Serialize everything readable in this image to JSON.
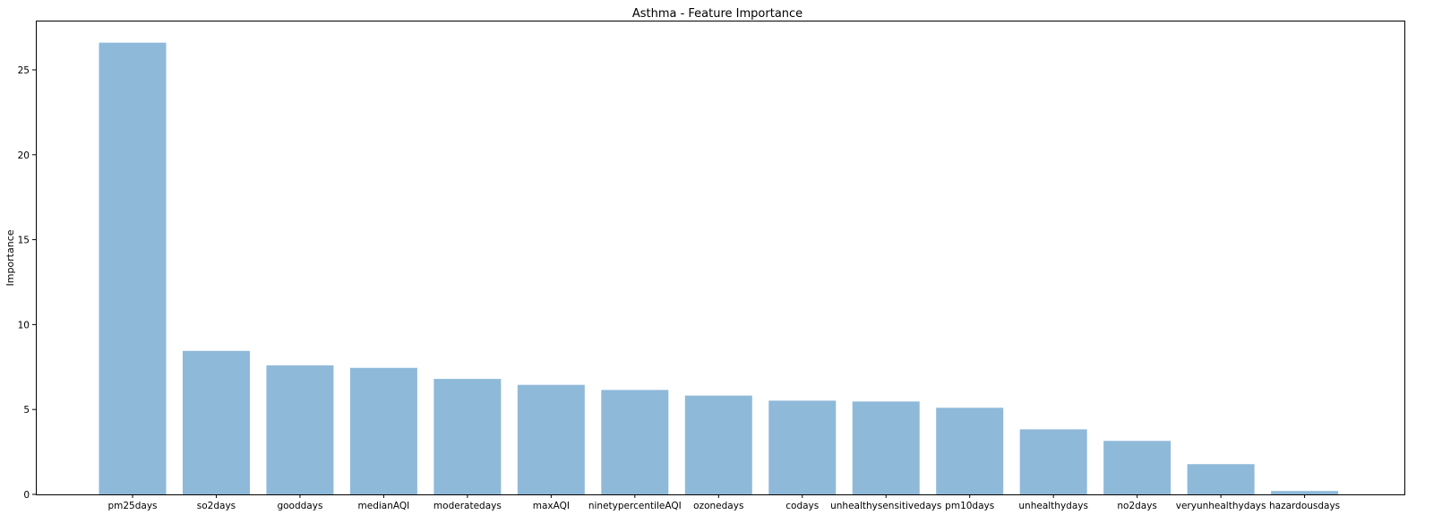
{
  "chart_data": {
    "type": "bar",
    "title": "Asthma - Feature Importance",
    "xlabel": "",
    "ylabel": "Importance",
    "categories": [
      "pm25days",
      "so2days",
      "gooddays",
      "medianAQI",
      "moderatedays",
      "maxAQI",
      "ninetypercentileAQI",
      "ozonedays",
      "codays",
      "unhealthysensitivedays",
      "pm10days",
      "unhealthydays",
      "no2days",
      "veryunhealthydays",
      "hazardousdays"
    ],
    "values": [
      26.6,
      8.45,
      7.6,
      7.45,
      6.8,
      6.45,
      6.15,
      5.82,
      5.52,
      5.47,
      5.1,
      3.83,
      3.15,
      1.78,
      0.2
    ],
    "ylim": [
      0,
      27.9
    ],
    "yticks": [
      0,
      5,
      10,
      15,
      20,
      25
    ],
    "grid": false,
    "legend": "none",
    "bar_color": "#8fb9d9"
  }
}
